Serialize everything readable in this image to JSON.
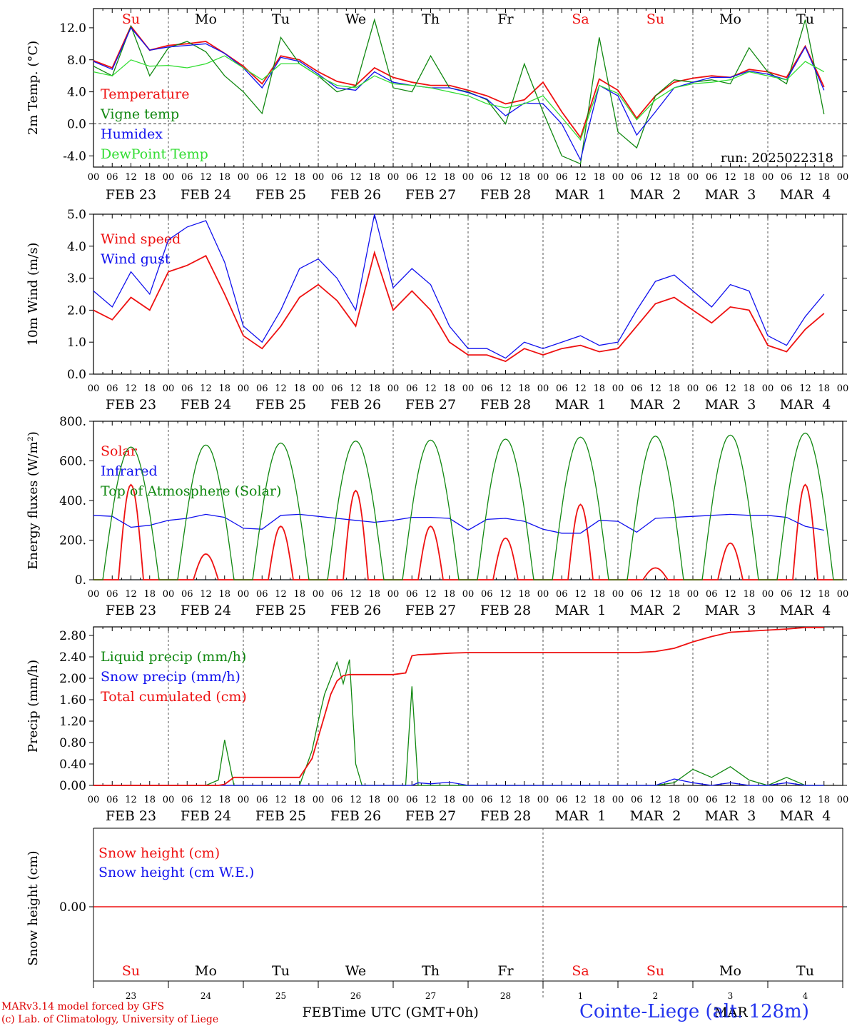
{
  "footer": {
    "credit_line1": "MARv3.14 model forced by GFS",
    "credit_line2": "(c) Lab. of Climatology, University of Liege",
    "x_axis_label": "Time UTC (GMT+0h)",
    "station": "Cointe-Liege (alt. 128m)",
    "month_label_feb": "FEB",
    "month_label_mar": "MAR"
  },
  "colors": {
    "red": "#ee1111",
    "green": "#118811",
    "blue": "#1111ee",
    "lightgreen": "#33dd33",
    "grid": "#444444"
  },
  "time_axis": {
    "hour_ticks": [
      "00",
      "06",
      "12",
      "18"
    ],
    "dates": [
      "FEB 23",
      "FEB 24",
      "FEB 25",
      "FEB 26",
      "FEB 27",
      "FEB 28",
      "MAR  1",
      "MAR  2",
      "MAR  3",
      "MAR  4"
    ],
    "weekdays": [
      "Su",
      "Mo",
      "Tu",
      "We",
      "Th",
      "Fr",
      "Sa",
      "Su",
      "Mo",
      "Tu"
    ],
    "weekend_flags": [
      true,
      false,
      false,
      false,
      false,
      false,
      true,
      true,
      false,
      false
    ],
    "day_numbers": [
      "23",
      "24",
      "25",
      "26",
      "27",
      "28",
      "1",
      "2",
      "3",
      "4"
    ]
  },
  "chart_data": [
    {
      "type": "line",
      "ylabel": "2m Temp. (°C)",
      "ylim": [
        -5.4,
        14.4
      ],
      "yticks": [
        -4.0,
        0.0,
        4.0,
        8.0,
        12.0
      ],
      "ytick_labels": [
        "-4.0",
        "0.0",
        "4.0",
        "8.0",
        "12.0"
      ],
      "zero_line": true,
      "annotation": "run: 2025022318",
      "x_hours": [
        0,
        6,
        12,
        18,
        24,
        30,
        36,
        42,
        48,
        54,
        60,
        66,
        72,
        78,
        84,
        90,
        96,
        102,
        108,
        114,
        120,
        126,
        132,
        138,
        144,
        150,
        156,
        162,
        168,
        174,
        180,
        186,
        192,
        198,
        204,
        210,
        216,
        222,
        228,
        234
      ],
      "series": [
        {
          "name": "Temperature",
          "color": "red",
          "values": [
            7.9,
            7.0,
            12.2,
            9.2,
            9.8,
            10.0,
            10.3,
            8.8,
            7.2,
            5.0,
            8.5,
            8.0,
            6.5,
            5.3,
            4.8,
            7.0,
            5.8,
            5.2,
            4.8,
            4.8,
            4.2,
            3.5,
            2.5,
            3.0,
            5.2,
            1.5,
            -1.7,
            5.6,
            4.2,
            0.7,
            3.5,
            5.2,
            5.7,
            6.0,
            5.8,
            6.8,
            6.5,
            5.8,
            9.7,
            4.6
          ]
        },
        {
          "name": "Vigne temp",
          "color": "green",
          "values": [
            7.2,
            6.0,
            12.2,
            6.0,
            9.5,
            10.3,
            9.0,
            6.0,
            4.0,
            1.3,
            10.8,
            7.5,
            6.0,
            4.0,
            4.7,
            13.0,
            4.5,
            4.0,
            8.5,
            4.5,
            4.0,
            3.0,
            0.0,
            7.5,
            1.5,
            -4.0,
            -5.0,
            10.8,
            -1.0,
            -3.0,
            3.5,
            5.5,
            5.2,
            5.5,
            5.0,
            9.5,
            6.5,
            5.0,
            13.0,
            1.2
          ]
        },
        {
          "name": "Humidex",
          "color": "blue",
          "values": [
            7.8,
            6.8,
            12.0,
            9.2,
            9.6,
            9.8,
            10.0,
            8.8,
            7.0,
            4.5,
            8.3,
            7.8,
            6.2,
            4.5,
            4.2,
            6.5,
            5.2,
            4.8,
            4.5,
            4.5,
            3.9,
            3.1,
            1.0,
            2.6,
            2.5,
            0.0,
            -4.5,
            4.8,
            3.5,
            -1.4,
            1.5,
            4.5,
            5.2,
            5.8,
            5.8,
            6.6,
            6.2,
            5.5,
            9.6,
            4.2
          ]
        },
        {
          "name": "DewPoint Temp",
          "color": "lightgreen",
          "values": [
            6.5,
            6.0,
            8.0,
            7.2,
            7.3,
            7.0,
            7.5,
            8.5,
            7.0,
            5.5,
            7.5,
            7.5,
            6.0,
            4.8,
            4.5,
            6.0,
            5.0,
            4.8,
            4.5,
            4.0,
            3.5,
            2.5,
            2.0,
            2.5,
            3.5,
            0.8,
            -2.0,
            4.8,
            3.8,
            0.5,
            3.0,
            4.5,
            5.0,
            5.2,
            5.5,
            6.5,
            6.0,
            5.5,
            7.8,
            6.5
          ]
        }
      ]
    },
    {
      "type": "line",
      "ylabel": "10m Wind (m/s)",
      "ylim": [
        0,
        5.0
      ],
      "yticks": [
        0,
        1,
        2,
        3,
        4,
        5
      ],
      "ytick_labels": [
        "0.0",
        "1.0",
        "2.0",
        "3.0",
        "4.0",
        "5.0"
      ],
      "x_hours": [
        0,
        6,
        12,
        18,
        24,
        30,
        36,
        42,
        48,
        54,
        60,
        66,
        72,
        78,
        84,
        90,
        96,
        102,
        108,
        114,
        120,
        126,
        132,
        138,
        144,
        150,
        156,
        162,
        168,
        174,
        180,
        186,
        192,
        198,
        204,
        210,
        216,
        222,
        228,
        234
      ],
      "series": [
        {
          "name": "Wind speed",
          "color": "red",
          "values": [
            2.0,
            1.7,
            2.4,
            2.0,
            3.2,
            3.4,
            3.7,
            2.5,
            1.2,
            0.8,
            1.5,
            2.4,
            2.8,
            2.3,
            1.5,
            3.8,
            2.0,
            2.6,
            2.0,
            1.0,
            0.6,
            0.6,
            0.4,
            0.8,
            0.6,
            0.8,
            0.9,
            0.7,
            0.8,
            1.5,
            2.2,
            2.4,
            2.0,
            1.6,
            2.1,
            2.0,
            0.9,
            0.7,
            1.4,
            1.9
          ]
        },
        {
          "name": "Wind gust",
          "color": "blue",
          "values": [
            2.6,
            2.1,
            3.2,
            2.5,
            4.2,
            4.6,
            4.8,
            3.5,
            1.5,
            1.0,
            2.0,
            3.3,
            3.6,
            3.0,
            2.0,
            5.0,
            2.7,
            3.3,
            2.8,
            1.5,
            0.8,
            0.8,
            0.5,
            1.0,
            0.8,
            1.0,
            1.2,
            0.9,
            1.0,
            2.0,
            2.9,
            3.1,
            2.6,
            2.1,
            2.8,
            2.6,
            1.2,
            0.9,
            1.8,
            2.5
          ]
        }
      ]
    },
    {
      "type": "line",
      "ylabel": "Energy fluxes (W/m²)",
      "ylim": [
        0,
        800
      ],
      "yticks": [
        0,
        200,
        400,
        600,
        800
      ],
      "ytick_labels": [
        "0.",
        "200.",
        "400.",
        "600.",
        "800."
      ],
      "series": [
        {
          "name": "Solar",
          "color": "red",
          "peaks": [
            480,
            130,
            270,
            450,
            270,
            210,
            380,
            60,
            185,
            480
          ],
          "peak_hour": 12,
          "half_width_hours": 4
        },
        {
          "name": "Infrared",
          "color": "blue",
          "x_hours": [
            0,
            6,
            12,
            18,
            24,
            30,
            36,
            42,
            48,
            54,
            60,
            66,
            72,
            78,
            84,
            90,
            96,
            102,
            108,
            114,
            120,
            126,
            132,
            138,
            144,
            150,
            156,
            162,
            168,
            174,
            180,
            186,
            192,
            198,
            204,
            210,
            216,
            222,
            228,
            234
          ],
          "values": [
            325,
            320,
            265,
            275,
            300,
            310,
            330,
            315,
            260,
            255,
            325,
            330,
            320,
            310,
            300,
            290,
            300,
            315,
            315,
            310,
            250,
            305,
            310,
            295,
            255,
            235,
            235,
            300,
            295,
            240,
            310,
            315,
            320,
            325,
            330,
            325,
            325,
            315,
            270,
            250
          ]
        },
        {
          "name": "Top of Atmosphere (Solar)",
          "color": "green",
          "peaks": [
            670,
            680,
            690,
            700,
            705,
            710,
            720,
            725,
            730,
            740
          ],
          "peak_hour": 12,
          "half_width_hours": 9
        }
      ]
    },
    {
      "type": "line",
      "ylabel": "Precip (mm/h)",
      "ylim": [
        0,
        2.96
      ],
      "yticks": [
        0,
        0.4,
        0.8,
        1.2,
        1.6,
        2.0,
        2.4,
        2.8
      ],
      "ytick_labels": [
        "0.00",
        "0.40",
        "0.80",
        "1.20",
        "1.60",
        "2.00",
        "2.40",
        "2.80"
      ],
      "x_hours": [
        0,
        6,
        12,
        18,
        24,
        30,
        36,
        40,
        42,
        45,
        48,
        54,
        60,
        66,
        70,
        72,
        74,
        76,
        78,
        80,
        82,
        84,
        86,
        90,
        96,
        100,
        102,
        104,
        108,
        114,
        120,
        126,
        132,
        138,
        144,
        150,
        156,
        162,
        168,
        174,
        180,
        186,
        192,
        198,
        204,
        210,
        216,
        222,
        228,
        234
      ],
      "series": [
        {
          "name": "Liquid precip (mm/h)",
          "color": "green",
          "values": [
            0,
            0,
            0,
            0,
            0,
            0,
            0,
            0.1,
            0.85,
            0,
            0,
            0,
            0,
            0,
            0.65,
            1.2,
            1.7,
            2.0,
            2.3,
            1.9,
            2.35,
            0.4,
            0,
            0,
            0,
            0,
            1.85,
            0,
            0,
            0,
            0,
            0,
            0,
            0,
            0,
            0,
            0,
            0,
            0,
            0,
            0,
            0.05,
            0.3,
            0.15,
            0.35,
            0.1,
            0,
            0.15,
            0,
            0
          ]
        },
        {
          "name": "Snow precip (mm/h)",
          "color": "blue",
          "values": [
            0,
            0,
            0,
            0,
            0,
            0,
            0,
            0,
            0,
            0,
            0,
            0,
            0,
            0,
            0,
            0,
            0,
            0,
            0,
            0,
            0,
            0,
            0,
            0,
            0,
            0,
            0,
            0.05,
            0.03,
            0.06,
            0,
            0,
            0,
            0,
            0,
            0,
            0,
            0,
            0,
            0,
            0,
            0.12,
            0.05,
            0,
            0.05,
            0,
            0,
            0.05,
            0,
            0
          ]
        },
        {
          "name": "Total cumulated (cm)",
          "color": "red",
          "values": [
            0,
            0,
            0,
            0,
            0,
            0,
            0,
            0,
            0.02,
            0.15,
            0.15,
            0.15,
            0.15,
            0.15,
            0.5,
            0.9,
            1.3,
            1.7,
            1.95,
            2.05,
            2.07,
            2.07,
            2.07,
            2.07,
            2.07,
            2.1,
            2.42,
            2.44,
            2.45,
            2.47,
            2.48,
            2.48,
            2.48,
            2.48,
            2.48,
            2.48,
            2.48,
            2.48,
            2.48,
            2.48,
            2.5,
            2.56,
            2.68,
            2.78,
            2.86,
            2.88,
            2.9,
            2.92,
            2.95,
            2.95
          ]
        }
      ]
    },
    {
      "type": "line",
      "ylabel": "Snow height (cm)",
      "ytick_labels": [
        "0.00"
      ],
      "series": [
        {
          "name": "Snow height (cm)",
          "color": "red",
          "values": [
            0,
            0
          ]
        },
        {
          "name": "Snow height (cm W.E.)",
          "color": "blue",
          "values": []
        }
      ]
    }
  ]
}
